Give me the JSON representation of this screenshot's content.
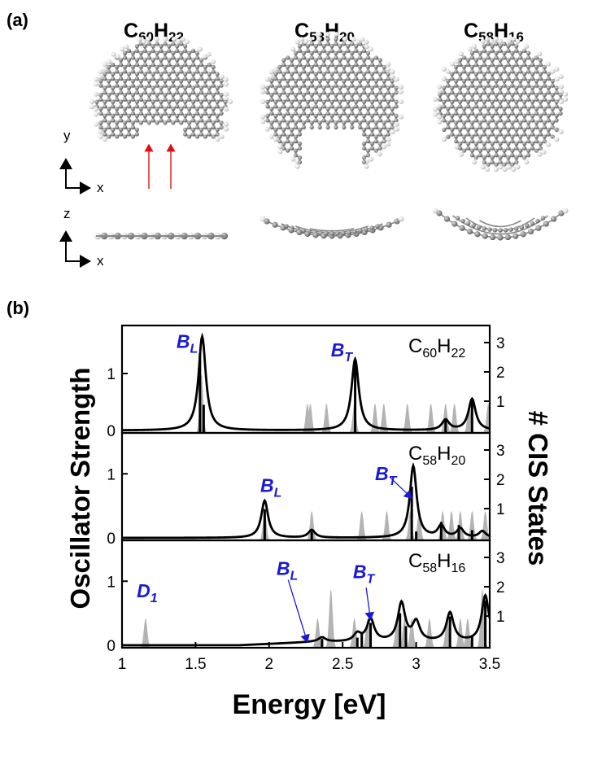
{
  "panel_a_label": "(a)",
  "panel_b_label": "(b)",
  "molecules": [
    {
      "name": "C60H22",
      "C": "C",
      "n": "60",
      "H": "H",
      "m": "22"
    },
    {
      "name": "C58H20",
      "C": "C",
      "n": "58",
      "H": "H",
      "m": "20"
    },
    {
      "name": "C58H16",
      "C": "C",
      "n": "58",
      "H": "H",
      "m": "16"
    }
  ],
  "axes_a": {
    "top": [
      "y",
      "x"
    ],
    "bottom": [
      "z",
      "x"
    ]
  },
  "colors": {
    "accent": "#1a1ad6",
    "bar_gray": "#b3b3b3",
    "arrow_red": "#e01010"
  },
  "chart_data": {
    "type": "line",
    "xlabel": "Energy [eV]",
    "ylabel_left": "Oscillator Strength",
    "ylabel_right": "# CIS States",
    "xlim": [
      1,
      3.5
    ],
    "x_ticks": [
      "1",
      "1.5",
      "2",
      "2.5",
      "3",
      "3.5"
    ],
    "panels": [
      {
        "formula": {
          "C": "C",
          "n": "60",
          "H": "H",
          "m": "22"
        },
        "ylim": [
          0,
          1.8
        ],
        "left_ticks": [
          "0",
          "1"
        ],
        "right_ticks": [
          "1",
          "2",
          "3"
        ],
        "annotations": [
          {
            "main": "B",
            "sub": "L",
            "x": 1.37,
            "y": 1.45
          },
          {
            "main": "B",
            "sub": "T",
            "x": 2.42,
            "y": 1.3
          }
        ],
        "gaussian_width": 0.012,
        "spectrum_width": 0.03,
        "cis_states": [
          {
            "x": 1.54,
            "n": 2
          },
          {
            "x": 2.26,
            "n": 1
          },
          {
            "x": 2.28,
            "n": 1
          },
          {
            "x": 2.39,
            "n": 1
          },
          {
            "x": 2.58,
            "n": 1
          },
          {
            "x": 2.72,
            "n": 1
          },
          {
            "x": 2.78,
            "n": 1
          },
          {
            "x": 2.94,
            "n": 1
          },
          {
            "x": 3.1,
            "n": 1
          },
          {
            "x": 3.2,
            "n": 1
          },
          {
            "x": 3.26,
            "n": 1
          },
          {
            "x": 3.36,
            "n": 1
          },
          {
            "x": 3.49,
            "n": 1
          }
        ],
        "oscillator": [
          {
            "x": 1.53,
            "f": 1.35
          },
          {
            "x": 1.555,
            "f": 0.45
          },
          {
            "x": 2.585,
            "f": 1.2
          },
          {
            "x": 3.2,
            "f": 0.18
          },
          {
            "x": 3.38,
            "f": 0.55
          }
        ],
        "spectrum_peaks": [
          {
            "x": 1.545,
            "h": 1.65
          },
          {
            "x": 2.585,
            "h": 1.25
          },
          {
            "x": 3.2,
            "h": 0.18
          },
          {
            "x": 3.38,
            "h": 0.55
          }
        ]
      },
      {
        "formula": {
          "C": "C",
          "n": "58",
          "H": "H",
          "m": "20"
        },
        "ylim": [
          0,
          1.6
        ],
        "left_ticks": [
          "0",
          "1"
        ],
        "right_ticks": [
          "1",
          "2",
          "3"
        ],
        "annotations": [
          {
            "main": "B",
            "sub": "L",
            "x": 1.94,
            "y": 0.72
          },
          {
            "main": "B",
            "sub": "T",
            "x": 2.72,
            "y": 0.9
          }
        ],
        "arrows": [
          {
            "from_x": 2.82,
            "from_y": 0.95,
            "to_x": 2.97,
            "to_y": 0.62
          }
        ],
        "gaussian_width": 0.012,
        "spectrum_width": 0.028,
        "cis_states": [
          {
            "x": 1.97,
            "n": 1
          },
          {
            "x": 2.29,
            "n": 1
          },
          {
            "x": 2.63,
            "n": 1
          },
          {
            "x": 2.8,
            "n": 1
          },
          {
            "x": 2.96,
            "n": 1
          },
          {
            "x": 3.02,
            "n": 1
          },
          {
            "x": 3.18,
            "n": 1
          },
          {
            "x": 3.24,
            "n": 1
          },
          {
            "x": 3.3,
            "n": 1
          },
          {
            "x": 3.38,
            "n": 1
          },
          {
            "x": 3.47,
            "n": 1
          }
        ],
        "oscillator": [
          {
            "x": 1.97,
            "f": 0.45
          },
          {
            "x": 2.29,
            "f": 0.1
          },
          {
            "x": 2.97,
            "f": 0.8
          },
          {
            "x": 3.0,
            "f": 0.1
          },
          {
            "x": 3.17,
            "f": 0.25
          },
          {
            "x": 3.29,
            "f": 0.2
          },
          {
            "x": 3.38,
            "f": 0.12
          }
        ],
        "spectrum_peaks": [
          {
            "x": 1.97,
            "h": 0.58
          },
          {
            "x": 2.29,
            "h": 0.12
          },
          {
            "x": 2.98,
            "h": 1.12
          },
          {
            "x": 3.17,
            "h": 0.18
          },
          {
            "x": 3.3,
            "h": 0.14
          },
          {
            "x": 3.45,
            "h": 0.1
          }
        ]
      },
      {
        "formula": {
          "C": "C",
          "n": "58",
          "H": "H",
          "m": "16"
        },
        "ylim": [
          0,
          1.6
        ],
        "left_ticks": [
          "0",
          "1"
        ],
        "right_ticks": [
          "1",
          "2",
          "3"
        ],
        "annotations": [
          {
            "main": "D",
            "sub": "1",
            "x": 1.1,
            "y": 0.75
          },
          {
            "main": "B",
            "sub": "L",
            "x": 2.05,
            "y": 1.1
          },
          {
            "main": "B",
            "sub": "T",
            "x": 2.57,
            "y": 1.05
          }
        ],
        "arrows": [
          {
            "from_x": 2.13,
            "from_y": 1.02,
            "to_x": 2.26,
            "to_y": 0.05
          },
          {
            "from_x": 2.66,
            "from_y": 0.9,
            "to_x": 2.69,
            "to_y": 0.4
          }
        ],
        "gaussian_width": 0.012,
        "spectrum_width": 0.03,
        "cis_states": [
          {
            "x": 1.16,
            "n": 1
          },
          {
            "x": 2.33,
            "n": 1
          },
          {
            "x": 2.42,
            "n": 2
          },
          {
            "x": 2.58,
            "n": 1
          },
          {
            "x": 2.67,
            "n": 1
          },
          {
            "x": 2.87,
            "n": 1
          },
          {
            "x": 2.92,
            "n": 1
          },
          {
            "x": 2.97,
            "n": 1
          },
          {
            "x": 3.09,
            "n": 1
          },
          {
            "x": 3.21,
            "n": 1
          },
          {
            "x": 3.3,
            "n": 1
          },
          {
            "x": 3.35,
            "n": 1
          },
          {
            "x": 3.45,
            "n": 2
          }
        ],
        "oscillator": [
          {
            "x": 2.36,
            "f": 0.1
          },
          {
            "x": 2.6,
            "f": 0.12
          },
          {
            "x": 2.63,
            "f": 0.2
          },
          {
            "x": 2.69,
            "f": 0.35
          },
          {
            "x": 2.89,
            "f": 0.5
          },
          {
            "x": 2.93,
            "f": 0.3
          },
          {
            "x": 3.23,
            "f": 0.45
          },
          {
            "x": 3.38,
            "f": 0.15
          },
          {
            "x": 3.47,
            "f": 0.7
          }
        ],
        "spectrum_peaks": [
          {
            "x": 2.36,
            "h": 0.07
          },
          {
            "x": 2.6,
            "h": 0.12
          },
          {
            "x": 2.69,
            "h": 0.35
          },
          {
            "x": 2.9,
            "h": 0.6
          },
          {
            "x": 3.0,
            "h": 0.3
          },
          {
            "x": 3.23,
            "h": 0.45
          },
          {
            "x": 3.47,
            "h": 0.72
          }
        ],
        "spectrum_baseline": {
          "start_x": 1.8,
          "end_x": 2.3,
          "max_h": 0.05
        }
      }
    ]
  }
}
